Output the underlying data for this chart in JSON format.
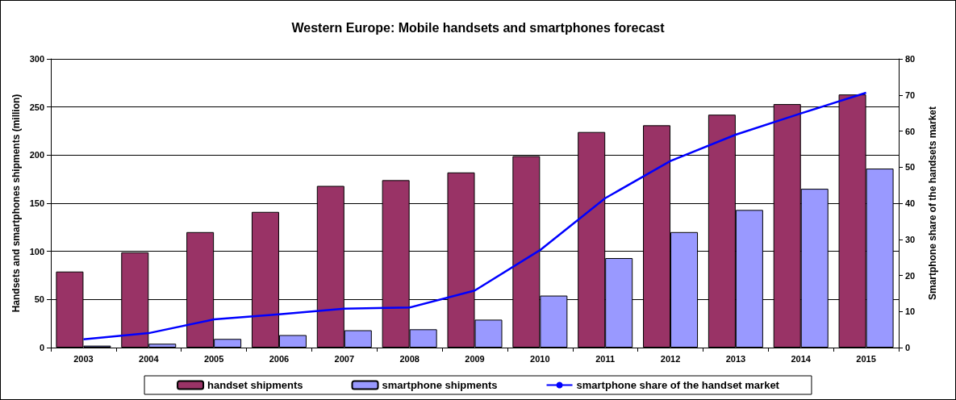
{
  "chart_data": {
    "type": "bar",
    "title": "Western Europe: Mobile handsets and smartphones forecast",
    "ylabel": "Handsets and smartphones shipments (million)",
    "y2label": "Smartphone share of the handsets market",
    "categories": [
      "2003",
      "2004",
      "2005",
      "2006",
      "2007",
      "2008",
      "2009",
      "2010",
      "2011",
      "2012",
      "2013",
      "2014",
      "2015"
    ],
    "series": [
      {
        "name": "handset shipments",
        "color": "#993366",
        "values": [
          79,
          99,
          120,
          141,
          168,
          174,
          182,
          199,
          224,
          231,
          242,
          253,
          263
        ]
      },
      {
        "name": "smartphone shipments",
        "color": "#9999ff",
        "values": [
          2,
          4,
          9,
          13,
          18,
          19,
          29,
          54,
          93,
          120,
          143,
          165,
          186
        ]
      },
      {
        "name": "smartphone share of the handset market",
        "type": "line",
        "axis": "y2",
        "color": "#0000ff",
        "values": [
          2.3,
          4,
          7.8,
          9.2,
          10.8,
          11.1,
          15.8,
          27,
          41.4,
          51.7,
          59,
          64.9,
          70.6
        ]
      }
    ],
    "ylim": [
      0,
      300
    ],
    "yticks": [
      0,
      50,
      100,
      150,
      200,
      250,
      300
    ],
    "y2lim": [
      0,
      80
    ],
    "y2ticks": [
      0,
      10,
      20,
      30,
      40,
      50,
      60,
      70,
      80
    ],
    "grid": "y",
    "legend": "bottom",
    "marker": "none",
    "line_style": "solid"
  }
}
